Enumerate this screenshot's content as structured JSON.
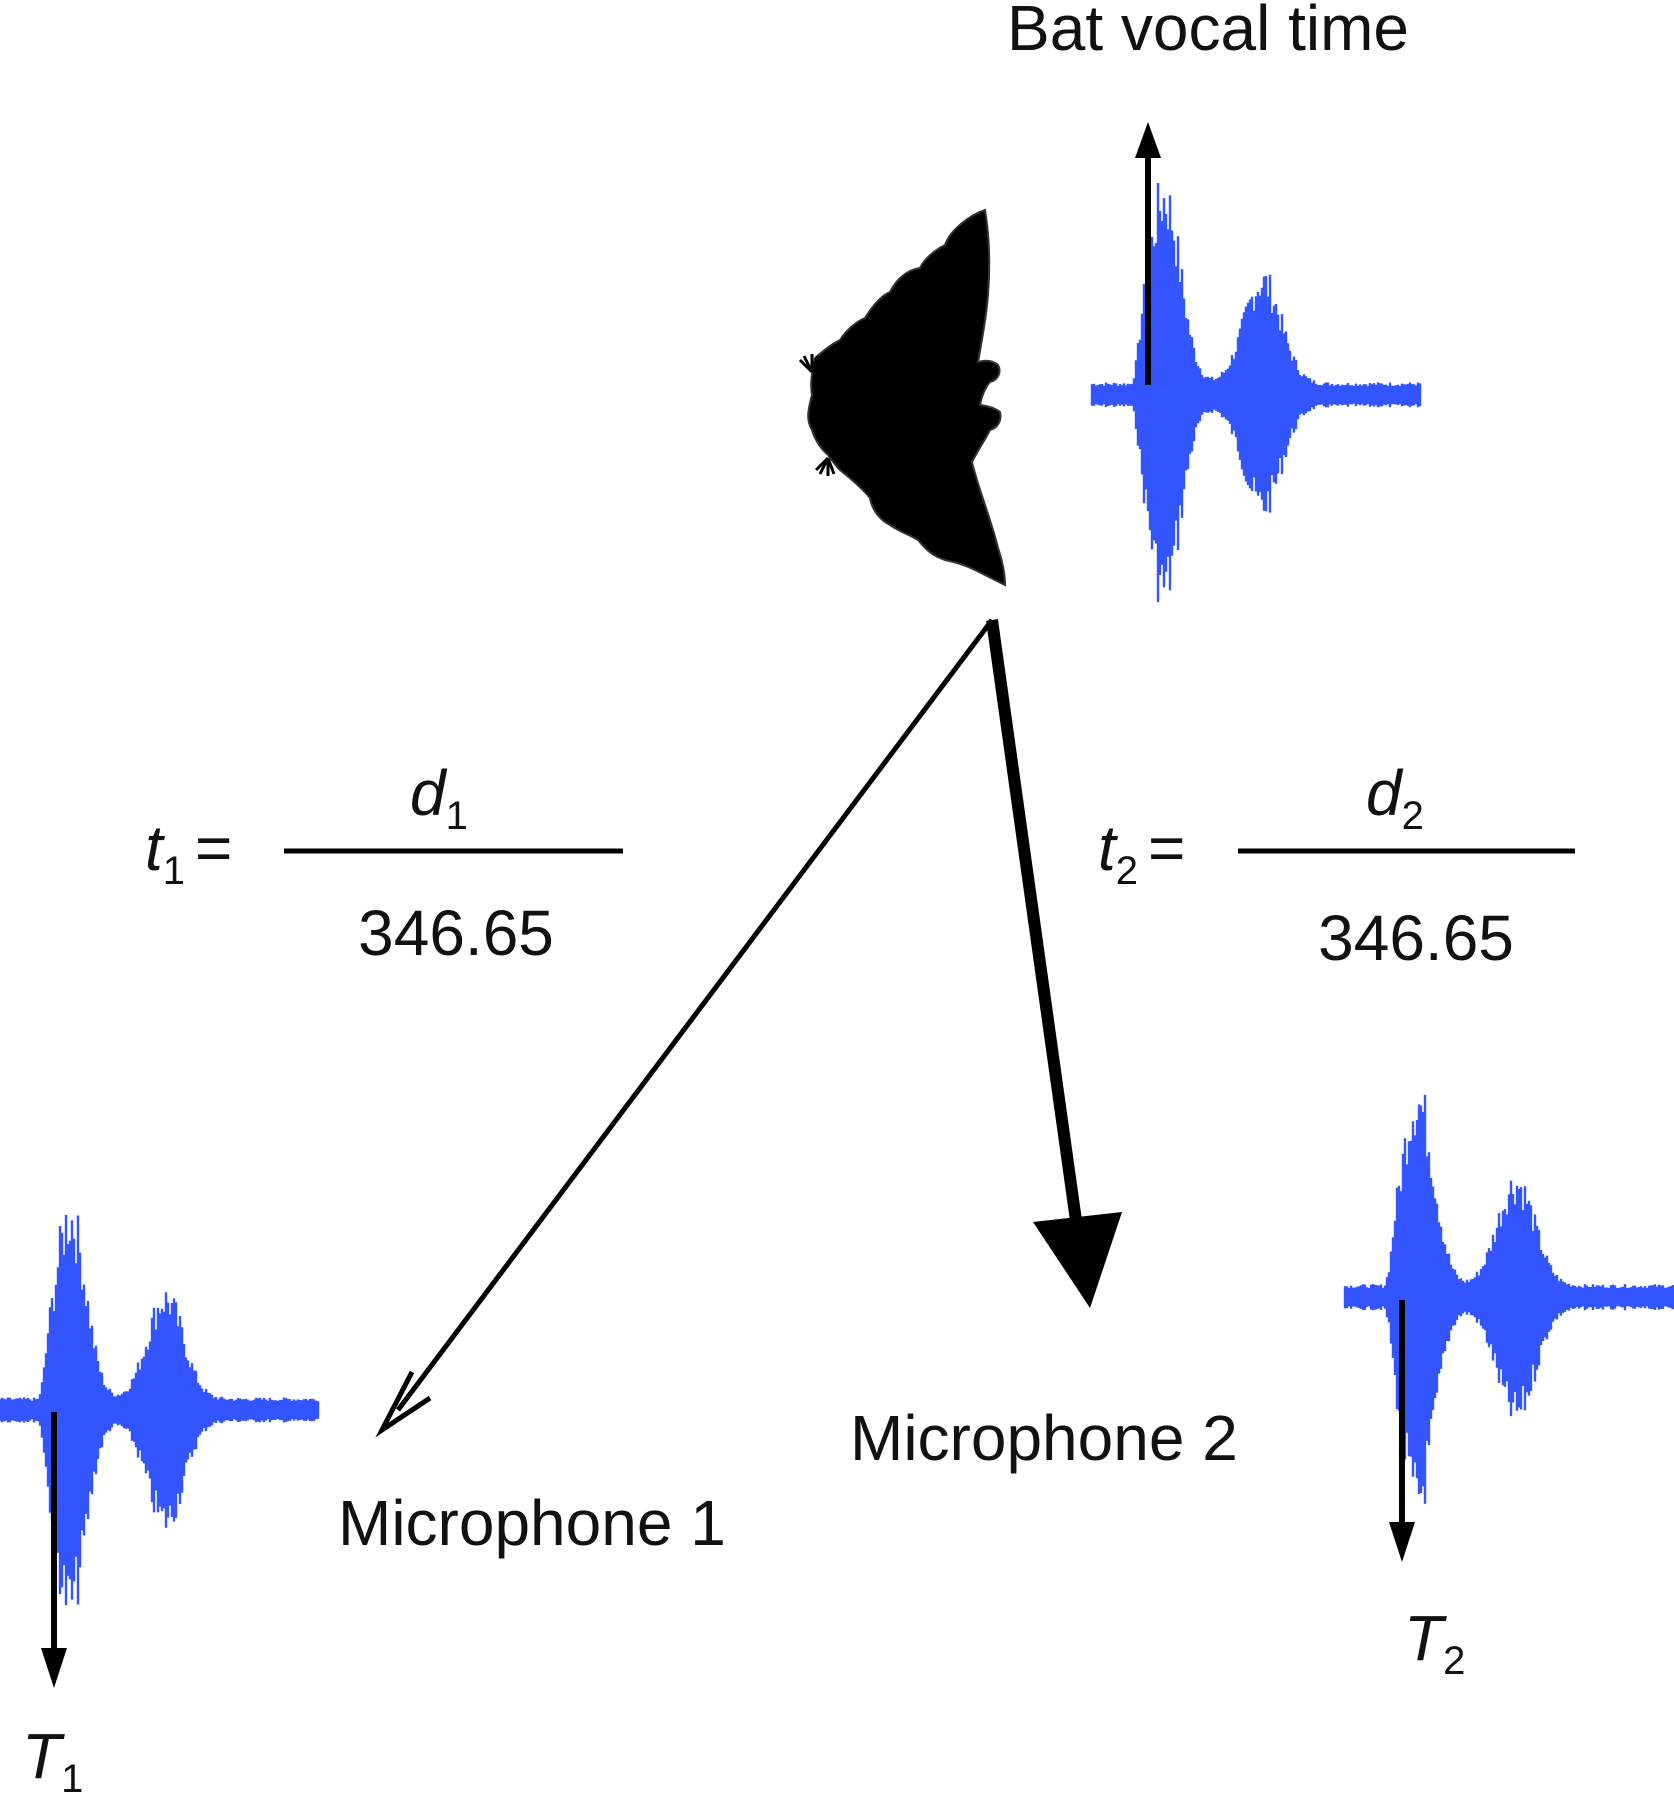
{
  "title": "Bat vocal time",
  "microphones": [
    {
      "label": "Microphone 1",
      "arrival_var": "T",
      "arrival_sub": "1"
    },
    {
      "label": "Microphone 2",
      "arrival_var": "T",
      "arrival_sub": "2"
    }
  ],
  "equations": [
    {
      "lhs_var": "t",
      "lhs_sub": "1",
      "eq": "=",
      "num_var": "d",
      "num_sub": "1",
      "denominator": "346.65"
    },
    {
      "lhs_var": "t",
      "lhs_sub": "2",
      "eq": "=",
      "num_var": "d",
      "num_sub": "2",
      "denominator": "346.65"
    }
  ],
  "colors": {
    "waveform": "#3355ff",
    "ink": "#000000"
  },
  "icons": {
    "source": "bat-silhouette-icon"
  }
}
